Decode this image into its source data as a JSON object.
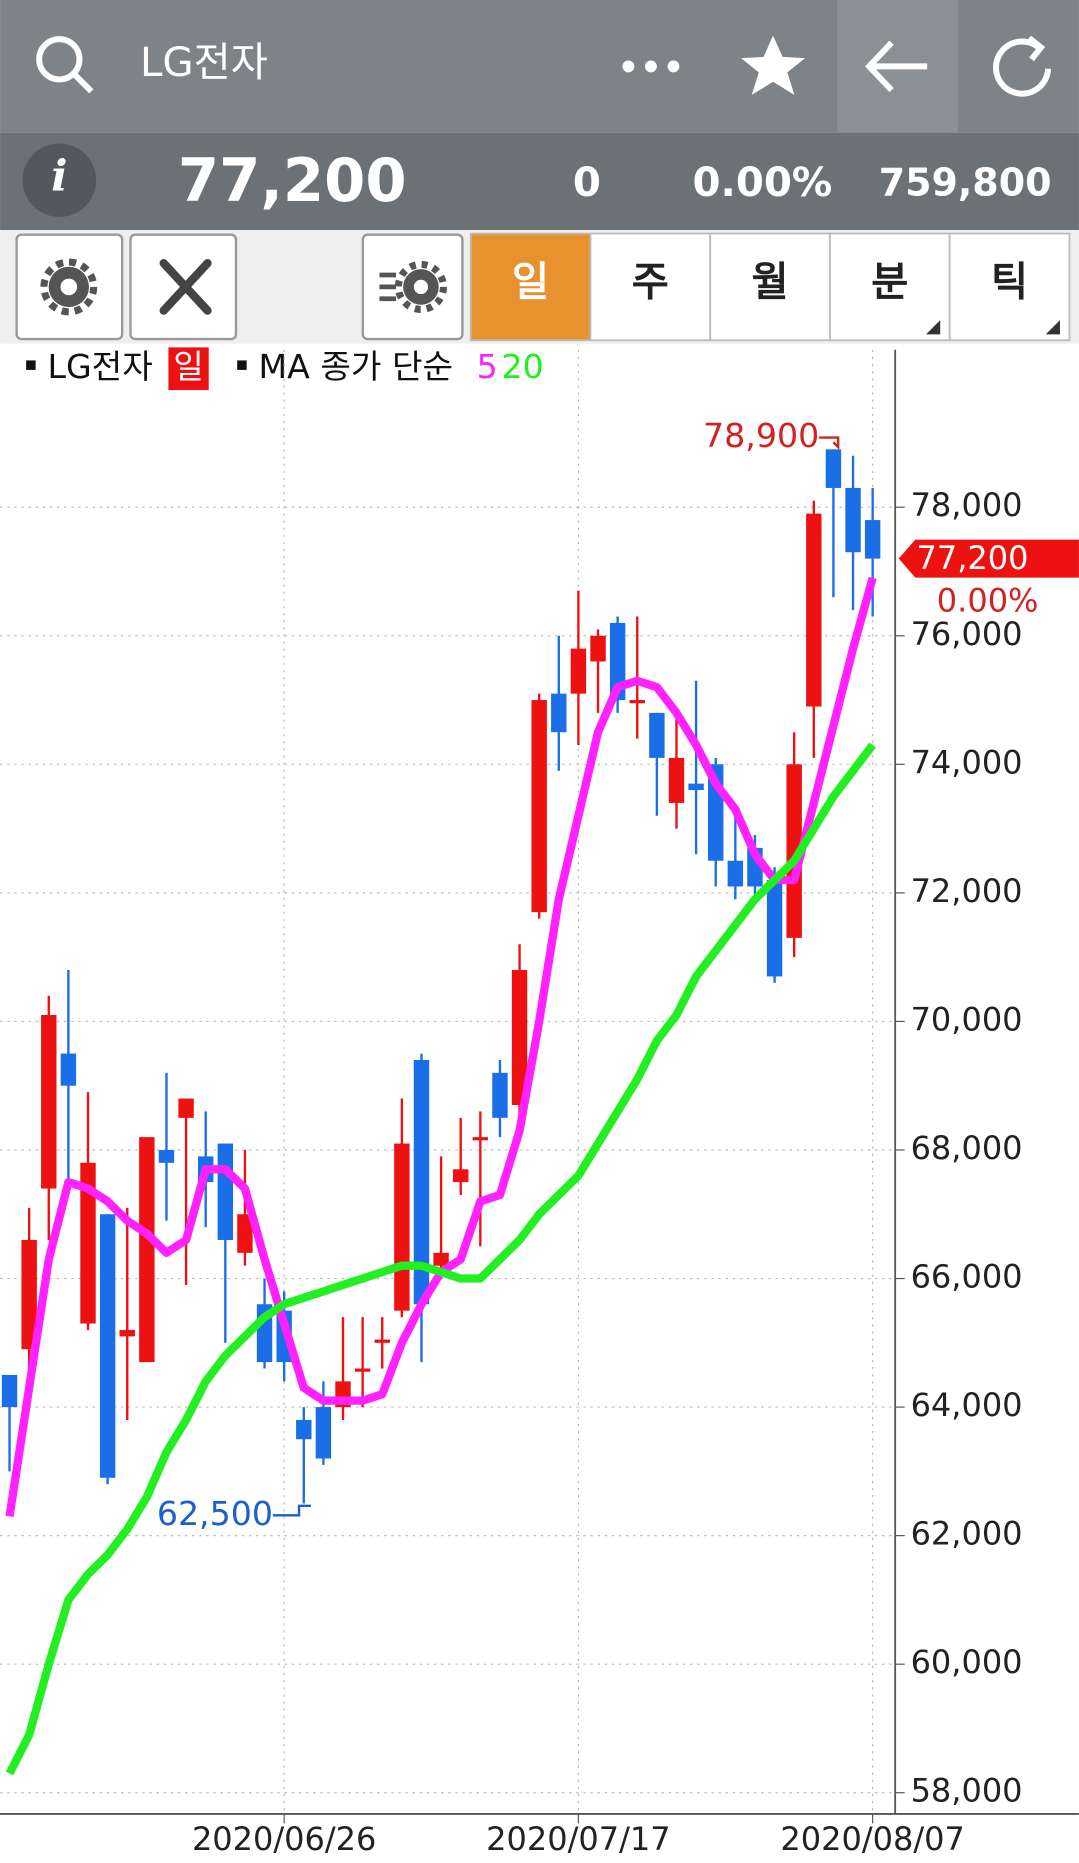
{
  "header": {
    "title": "LG전자",
    "price": "77,200",
    "change": "0",
    "change_rate": "0.00%",
    "volume": "759,800"
  },
  "tabs": [
    "일",
    "주",
    "월",
    "분",
    "틱"
  ],
  "chart_data": {
    "type": "candlestick",
    "legend": {
      "name": "LG전자",
      "period": "일",
      "ma_label": "MA 종가 단순"
    },
    "categories": [
      null,
      null,
      null,
      null,
      null,
      null,
      null,
      null,
      null,
      null,
      null,
      null,
      null,
      null,
      "2020/06/26",
      null,
      null,
      null,
      null,
      null,
      null,
      null,
      null,
      null,
      null,
      null,
      null,
      null,
      null,
      "2020/07/17",
      null,
      null,
      null,
      null,
      null,
      null,
      null,
      null,
      null,
      null,
      null,
      null,
      null,
      null,
      "2020/08/07"
    ],
    "open": [
      64500,
      64900,
      67400,
      69500,
      65300,
      67000,
      65100,
      64700,
      68000,
      68500,
      67900,
      68100,
      66400,
      65600,
      65500,
      63800,
      64000,
      64000,
      64550,
      65000,
      65500,
      69400,
      66200,
      67500,
      68150,
      69200,
      68700,
      71700,
      75100,
      75100,
      75600,
      76200,
      74950,
      74800,
      73400,
      73700,
      74000,
      72500,
      72700,
      72200,
      71300,
      74900,
      78900,
      78300,
      77800
    ],
    "high": [
      64500,
      67100,
      70400,
      70800,
      68900,
      67000,
      67100,
      68200,
      69200,
      68800,
      68600,
      68100,
      68000,
      66000,
      65800,
      64000,
      64400,
      65400,
      65400,
      65400,
      68800,
      69500,
      67900,
      68500,
      68600,
      69400,
      71200,
      75100,
      76000,
      76700,
      76100,
      76300,
      76300,
      74800,
      74700,
      75300,
      74100,
      73200,
      72900,
      72400,
      74500,
      78100,
      78900,
      78800,
      78300
    ],
    "low": [
      63000,
      64500,
      66600,
      67400,
      65200,
      62800,
      63800,
      64700,
      66900,
      65900,
      66800,
      65000,
      66200,
      64600,
      64400,
      62500,
      63100,
      63800,
      64000,
      64600,
      65400,
      64700,
      66100,
      67300,
      66500,
      68200,
      68500,
      71600,
      73900,
      74300,
      74800,
      74800,
      74400,
      73200,
      73000,
      72600,
      72100,
      71900,
      71900,
      70600,
      71000,
      74100,
      76600,
      76400,
      76300
    ],
    "close": [
      64000,
      66600,
      70100,
      69000,
      67800,
      62900,
      65200,
      68200,
      67800,
      68800,
      67500,
      66600,
      67000,
      64700,
      64700,
      63500,
      63200,
      64400,
      64600,
      65050,
      68100,
      65600,
      66400,
      67700,
      68200,
      68500,
      70800,
      75000,
      74500,
      75800,
      76000,
      75000,
      75000,
      74100,
      74100,
      73600,
      72500,
      72100,
      72100,
      70700,
      74000,
      77900,
      78300,
      77300,
      77200
    ],
    "up_color": "#ee1111",
    "down_color": "#1a6fe8",
    "series": [
      {
        "name": "5",
        "color": "#ff22ff",
        "values": [
          62300,
          64300,
          66300,
          67500,
          67400,
          67200,
          66900,
          66700,
          66400,
          66600,
          67700,
          67700,
          67400,
          66300,
          65300,
          64300,
          64100,
          64100,
          64100,
          64200,
          65000,
          65600,
          66100,
          66300,
          67200,
          67300,
          68300,
          70000,
          71900,
          73200,
          74500,
          75200,
          75300,
          75200,
          74800,
          74300,
          73700,
          73300,
          72600,
          72200,
          72200,
          73400,
          74600,
          75800,
          76900
        ]
      },
      {
        "name": "20",
        "color": "#22ee22",
        "values": [
          58300,
          58900,
          60000,
          61000,
          61400,
          61700,
          62100,
          62600,
          63300,
          63800,
          64400,
          64800,
          65100,
          65400,
          65600,
          65700,
          65800,
          65900,
          66000,
          66100,
          66200,
          66200,
          66100,
          66000,
          66000,
          66300,
          66600,
          67000,
          67300,
          67600,
          68100,
          68600,
          69100,
          69700,
          70100,
          70700,
          71100,
          71500,
          71900,
          72200,
          72500,
          73000,
          73500,
          73900,
          74300
        ]
      }
    ],
    "ylim": [
      57670,
      80450
    ],
    "yticks": [
      {
        "value": 58000,
        "label": "58,000"
      },
      {
        "value": 60000,
        "label": "60,000"
      },
      {
        "value": 62000,
        "label": "62,000"
      },
      {
        "value": 64000,
        "label": "64,000"
      },
      {
        "value": 66000,
        "label": "66,000"
      },
      {
        "value": 68000,
        "label": "68,000"
      },
      {
        "value": 70000,
        "label": "70,000"
      },
      {
        "value": 72000,
        "label": "72,000"
      },
      {
        "value": 74000,
        "label": "74,000"
      },
      {
        "value": 76000,
        "label": "76,000"
      },
      {
        "value": 78000,
        "label": "78,000"
      }
    ],
    "grid": true,
    "max_label": {
      "value": 78900,
      "label": "78,900"
    },
    "min_label": {
      "value": 62500,
      "label": "62,500"
    },
    "last_price": {
      "value": 77200,
      "label": "77,200"
    },
    "last_change": "0.00%"
  }
}
